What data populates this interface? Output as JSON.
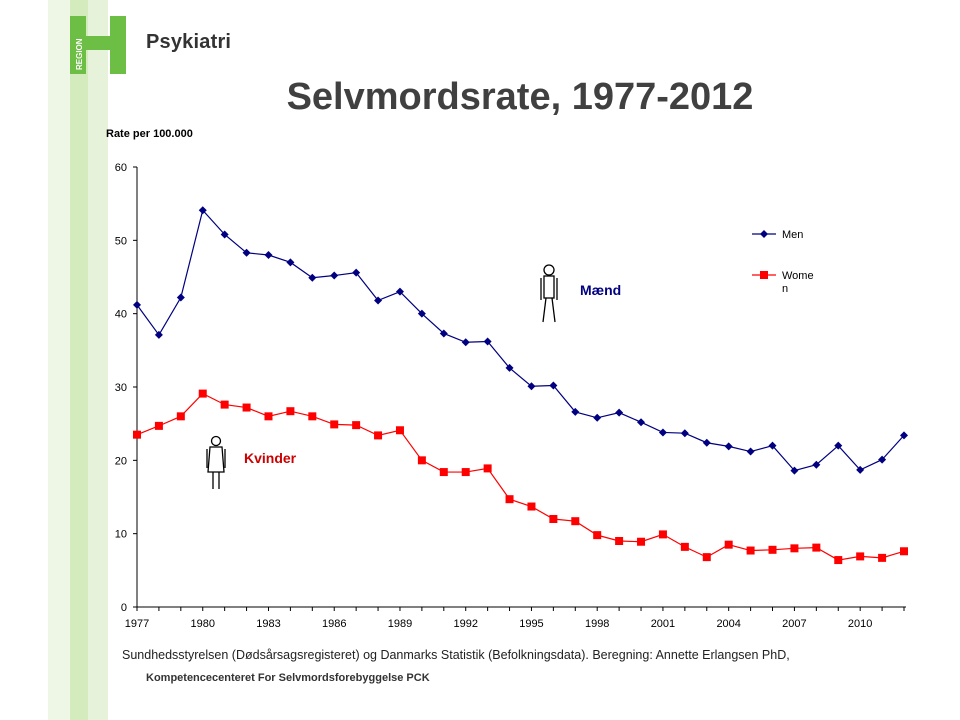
{
  "header": {
    "logo_text": "Psykiatri",
    "logo_letter": "REGION",
    "brand_color": "#6cbe45"
  },
  "title": "Selvmordsrate, 1977-2012",
  "ylabel": "Rate per 100.000",
  "annotations": {
    "men_label": "Mænd",
    "women_label": "Kvinder"
  },
  "source": {
    "line1": "Sundhedsstyrelsen (Dødsårsagsregisteret) og Danmarks Statistik (Befolkningsdata). Beregning: Annette Erlangsen PhD,",
    "line2": "Kompetencecenteret For Selvmordsforebyggelse PCK"
  },
  "chart_data": {
    "type": "line",
    "title": "Selvmordsrate, 1977-2012",
    "ylabel": "Rate per 100.000",
    "xlabel": "",
    "ylim": [
      0,
      60
    ],
    "yticks": [
      0,
      10,
      20,
      30,
      40,
      50,
      60
    ],
    "xtick_labels": [
      "1977",
      "1980",
      "1983",
      "1986",
      "1989",
      "1992",
      "1995",
      "1998",
      "2001",
      "2004",
      "2007",
      "2010"
    ],
    "x": [
      1977,
      1978,
      1979,
      1980,
      1981,
      1982,
      1983,
      1984,
      1985,
      1986,
      1987,
      1988,
      1989,
      1990,
      1991,
      1992,
      1993,
      1994,
      1995,
      1996,
      1997,
      1998,
      1999,
      2000,
      2001,
      2002,
      2003,
      2004,
      2005,
      2006,
      2007,
      2008,
      2009,
      2010,
      2011,
      2012
    ],
    "legend_position": "top-right",
    "grid": false,
    "series": [
      {
        "name": "Men",
        "color": "#000080",
        "marker": "diamond",
        "values": [
          41.2,
          37.1,
          42.2,
          54.1,
          50.8,
          48.3,
          48.0,
          47.0,
          44.9,
          45.2,
          45.6,
          41.8,
          43.0,
          40.0,
          37.3,
          36.1,
          36.2,
          32.6,
          30.1,
          30.2,
          26.6,
          25.8,
          26.5,
          25.2,
          23.8,
          23.7,
          22.4,
          21.9,
          21.2,
          22.0,
          18.6,
          19.4,
          22.0,
          18.7,
          20.1,
          23.4
        ]
      },
      {
        "name": "Wome n",
        "color": "#ff0000",
        "marker": "square",
        "values": [
          23.5,
          24.7,
          26.0,
          29.1,
          27.6,
          27.2,
          26.0,
          26.7,
          26.0,
          24.9,
          24.8,
          23.4,
          24.1,
          20.0,
          18.4,
          18.4,
          18.9,
          14.7,
          13.7,
          12.0,
          11.7,
          9.8,
          9.0,
          8.9,
          9.9,
          8.2,
          6.8,
          8.5,
          7.7,
          7.8,
          8.0,
          8.1,
          6.4,
          6.9,
          6.7,
          7.6
        ]
      }
    ]
  }
}
